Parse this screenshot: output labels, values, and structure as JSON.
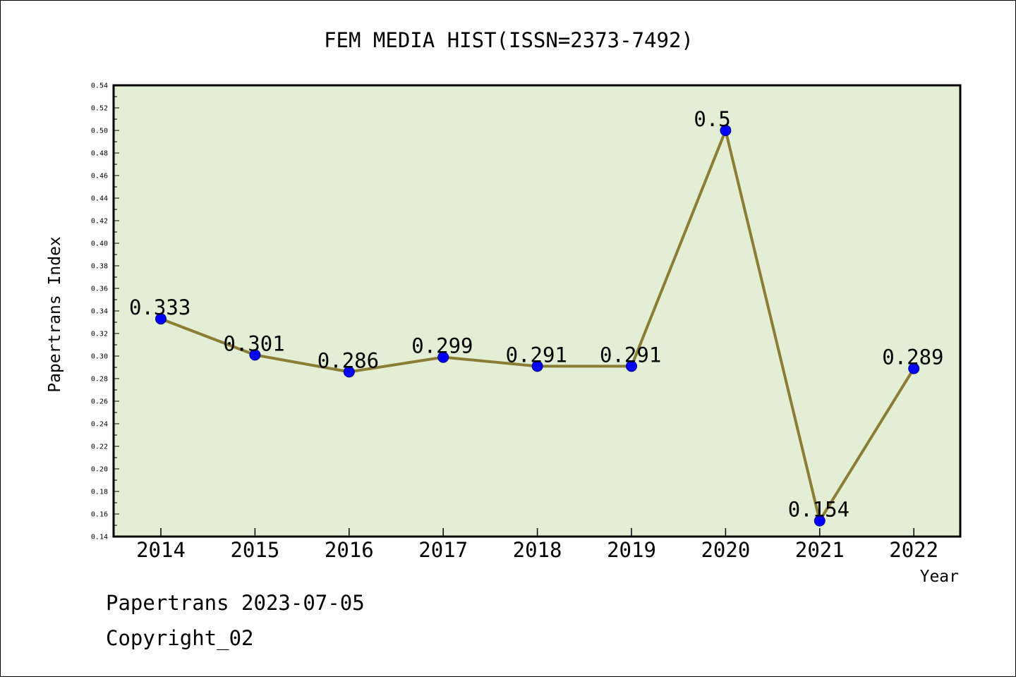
{
  "chart_data": {
    "type": "line",
    "title": "FEM MEDIA HIST(ISSN=2373-7492)",
    "xlabel": "Year",
    "ylabel": "Papertrans Index",
    "categories": [
      "2014",
      "2015",
      "2016",
      "2017",
      "2018",
      "2019",
      "2020",
      "2021",
      "2022"
    ],
    "series": [
      {
        "values": [
          0.333,
          0.301,
          0.286,
          0.299,
          0.291,
          0.291,
          0.5,
          0.154,
          0.289
        ],
        "labels": [
          "0.333",
          "0.301",
          "0.286",
          "0.299",
          "0.291",
          "0.291",
          "0.5",
          "0.154",
          "0.289"
        ],
        "line_color": "#8b7d35",
        "marker_color": "#0000ff"
      }
    ],
    "ylim": [
      0.14,
      0.54
    ],
    "yticks": [
      "0.14",
      "0.16",
      "0.18",
      "0.20",
      "0.22",
      "0.24",
      "0.26",
      "0.28",
      "0.30",
      "0.32",
      "0.34",
      "0.36",
      "0.38",
      "0.40",
      "0.42",
      "0.44",
      "0.46",
      "0.48",
      "0.50",
      "0.52",
      "0.54"
    ],
    "plot_background": "#e2efd5",
    "grid": false
  },
  "footer": {
    "line1": "Papertrans 2023-07-05",
    "line2": "Copyright_02"
  }
}
